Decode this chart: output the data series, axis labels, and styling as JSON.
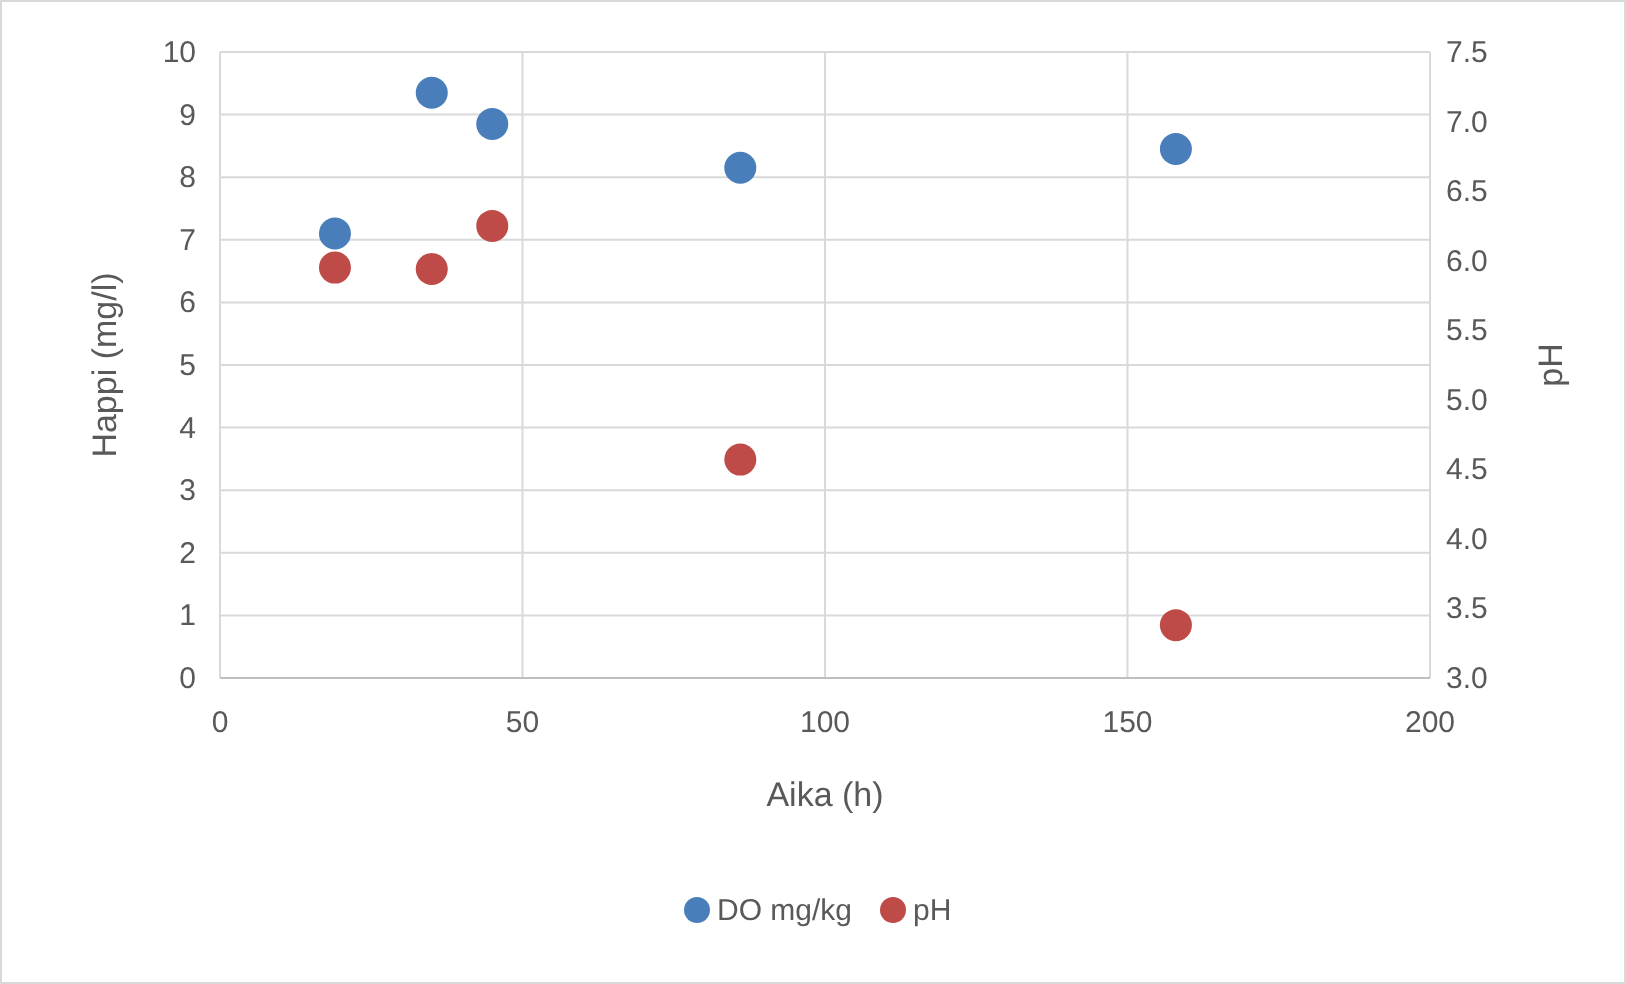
{
  "chart_data": {
    "type": "scatter",
    "xlabel": "Aika (h)",
    "ylabel": "Happi (mg/l)",
    "y2label": "pH",
    "xlim": [
      0,
      200
    ],
    "xticks": [
      0,
      50,
      100,
      150,
      200
    ],
    "ylim": [
      0,
      10
    ],
    "yticks": [
      0,
      1,
      2,
      3,
      4,
      5,
      6,
      7,
      8,
      9,
      10
    ],
    "y2lim": [
      3,
      7.5
    ],
    "y2ticks": [
      {
        "value": 3,
        "label": "3.0"
      },
      {
        "value": 3.5,
        "label": "3.5"
      },
      {
        "value": 4,
        "label": "4.0"
      },
      {
        "value": 4.5,
        "label": "4.5"
      },
      {
        "value": 5,
        "label": "5.0"
      },
      {
        "value": 5.5,
        "label": "5.5"
      },
      {
        "value": 6,
        "label": "6.0"
      },
      {
        "value": 6.5,
        "label": "6.5"
      },
      {
        "value": 7,
        "label": "7.0"
      },
      {
        "value": 7.5,
        "label": "7.5"
      }
    ],
    "grid": true,
    "legend": "bottom",
    "marker": "circle",
    "series": [
      {
        "name": "DO mg/kg",
        "color": "#4a7ebb",
        "x": [
          19,
          35,
          45,
          86,
          158
        ],
        "values": [
          7.1,
          9.35,
          8.85,
          8.15,
          8.45
        ]
      },
      {
        "name": "pH",
        "color": "#be4b48",
        "axis": "y2",
        "x": [
          19,
          35,
          45,
          86,
          158
        ],
        "values": [
          5.95,
          5.94,
          6.25,
          4.57,
          3.38
        ]
      }
    ]
  }
}
